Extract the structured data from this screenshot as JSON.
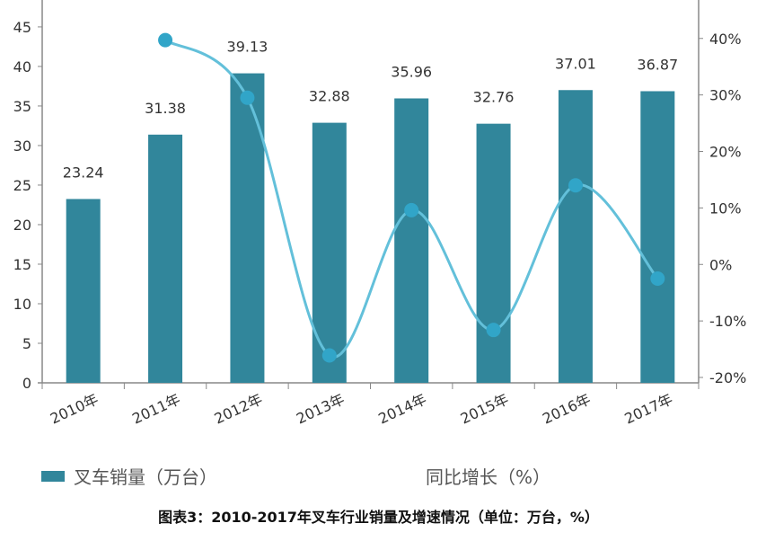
{
  "chart_data": {
    "type": "bar+line",
    "title": "图表3：2010-2017年叉车行业销量及增速情况（单位：万台，%）",
    "categories": [
      "2010年",
      "2011年",
      "2012年",
      "2013年",
      "2014年",
      "2015年",
      "2016年",
      "2017年"
    ],
    "series": [
      {
        "name": "叉车销量（万台）",
        "type": "bar",
        "axis": "left",
        "color": "#31869b",
        "values": [
          23.24,
          31.38,
          39.13,
          32.88,
          35.96,
          32.76,
          37.01,
          36.87
        ],
        "data_labels": [
          "23.24",
          "31.38",
          "39.13",
          "32.88",
          "35.96",
          "32.76",
          "37.01",
          "36.87"
        ]
      },
      {
        "name": "同比增长（%）",
        "type": "line",
        "smooth": true,
        "axis": "right",
        "color": "#4bacc6",
        "values": [
          null,
          39.7,
          29.5,
          -16.1,
          9.6,
          -11.6,
          14.0,
          -2.5
        ]
      }
    ],
    "left_axis": {
      "ylim": [
        0,
        48.4
      ],
      "ticks": [
        "0",
        "5",
        "10",
        "15",
        "20",
        "25",
        "30",
        "35",
        "40",
        "45"
      ]
    },
    "right_axis": {
      "ylim": [
        -20,
        46.8
      ],
      "ticks": [
        "-20%",
        "-10%",
        "0%",
        "10%",
        "20%",
        "30%",
        "40%"
      ]
    },
    "grid": false,
    "legend": "bottom"
  }
}
